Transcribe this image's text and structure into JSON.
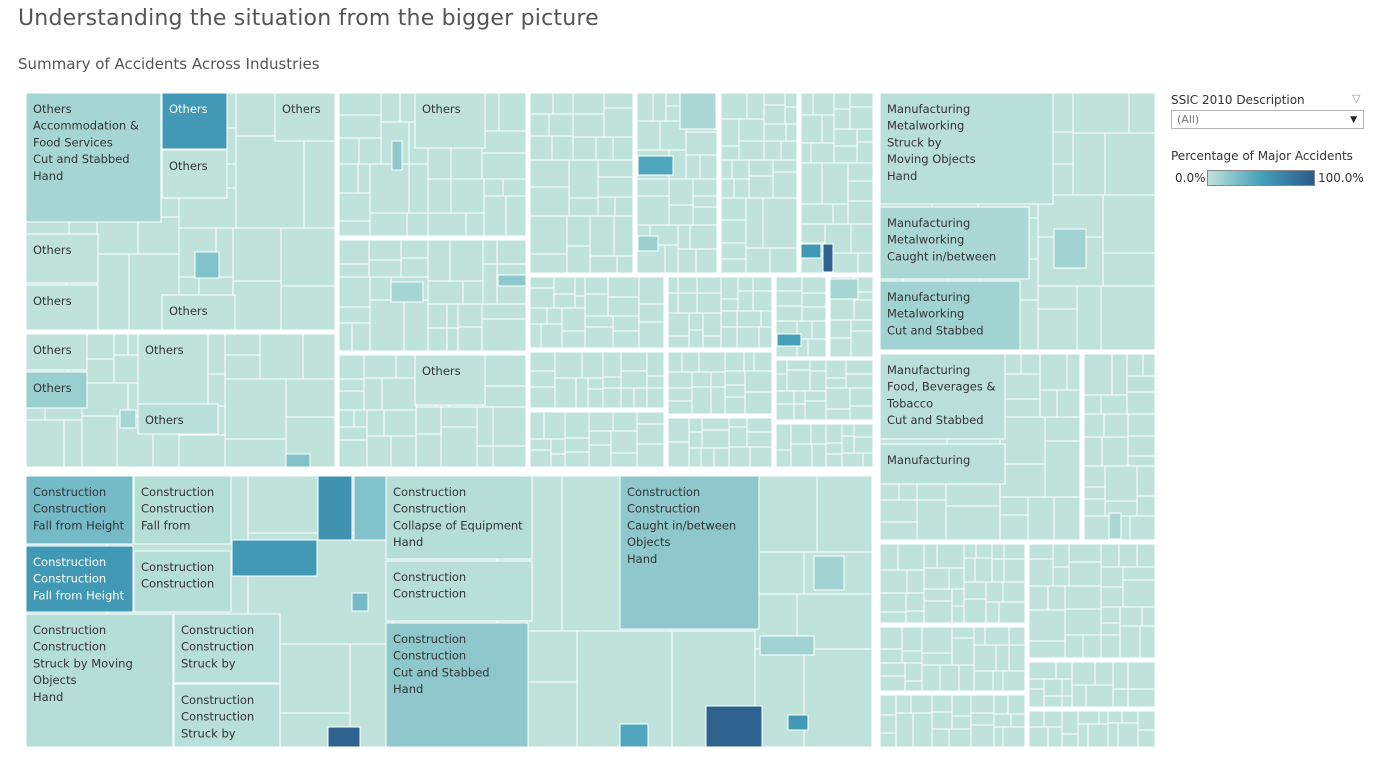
{
  "title": "Understanding the situation from the bigger picture",
  "subtitle": "Summary of Accidents Across Industries",
  "filter": {
    "label": "SSIC 2010 Description",
    "value": "(All)",
    "icon": "filter-icon"
  },
  "legend": {
    "title": "Percentage of Major Accidents",
    "min_label": "0.0%",
    "max_label": "100.0%",
    "colors": [
      "#bfe3da",
      "#44a0ba",
      "#2b5b8a"
    ]
  },
  "chart_data": {
    "type": "treemap",
    "title": "Summary of Accidents Across Industries",
    "color_measure": "Percentage of Major Accidents",
    "color_range": [
      0,
      100
    ],
    "labeled_cells": [
      {
        "lines": [
          "Others",
          "Accommodation &",
          "Food Services",
          "Cut and Stabbed",
          "Hand"
        ],
        "pct": 10
      },
      {
        "lines": [
          "Others"
        ],
        "pct": 55
      },
      {
        "lines": [
          "Others"
        ],
        "pct": 0
      },
      {
        "lines": [
          "Others"
        ],
        "pct": 0
      },
      {
        "lines": [
          "Others"
        ],
        "pct": 0
      },
      {
        "lines": [
          "Others"
        ],
        "pct": 0
      },
      {
        "lines": [
          "Others"
        ],
        "pct": 0
      },
      {
        "lines": [
          "Others"
        ],
        "pct": 0
      },
      {
        "lines": [
          "Others"
        ],
        "pct": 0
      },
      {
        "lines": [
          "Others"
        ],
        "pct": 15
      },
      {
        "lines": [
          "Others"
        ],
        "pct": 3
      },
      {
        "lines": [
          "Others"
        ],
        "pct": 0
      },
      {
        "lines": [
          "Others"
        ],
        "pct": 0
      },
      {
        "lines": [
          "Manufacturing",
          "Metalworking",
          "Struck by",
          "Moving Objects",
          "Hand"
        ],
        "pct": 3
      },
      {
        "lines": [
          "Manufacturing",
          "Metalworking",
          "Caught in/between"
        ],
        "pct": 8
      },
      {
        "lines": [
          "Manufacturing",
          "Metalworking",
          "Cut and Stabbed"
        ],
        "pct": 12
      },
      {
        "lines": [
          "Manufacturing",
          "Food, Beverages &",
          "Tobacco",
          "Cut and Stabbed"
        ],
        "pct": 2
      },
      {
        "lines": [
          "Manufacturing"
        ],
        "pct": 2
      },
      {
        "lines": [
          "Construction",
          "Construction",
          "Fall from Height"
        ],
        "pct": 30
      },
      {
        "lines": [
          "Construction",
          "Construction",
          "Fall from"
        ],
        "pct": 4
      },
      {
        "lines": [
          "Construction",
          "Construction",
          "Fall from Height"
        ],
        "pct": 55
      },
      {
        "lines": [
          "Construction",
          "Construction"
        ],
        "pct": 4
      },
      {
        "lines": [
          "Construction",
          "Construction",
          "Struck by Moving",
          "Objects",
          "Hand"
        ],
        "pct": 4
      },
      {
        "lines": [
          "Construction",
          "Construction",
          "Struck by"
        ],
        "pct": 3
      },
      {
        "lines": [
          "Construction",
          "Construction",
          "Struck by"
        ],
        "pct": 3
      },
      {
        "lines": [
          "Construction",
          "Construction",
          "Collapse of Equipment",
          "Hand"
        ],
        "pct": 4
      },
      {
        "lines": [
          "Construction",
          "Construction"
        ],
        "pct": 3
      },
      {
        "lines": [
          "Construction",
          "Construction",
          "Caught in/between",
          "Objects",
          "Hand"
        ],
        "pct": 20
      },
      {
        "lines": [
          "Construction",
          "Construction",
          "Cut and Stabbed",
          "Hand"
        ],
        "pct": 20
      }
    ]
  }
}
